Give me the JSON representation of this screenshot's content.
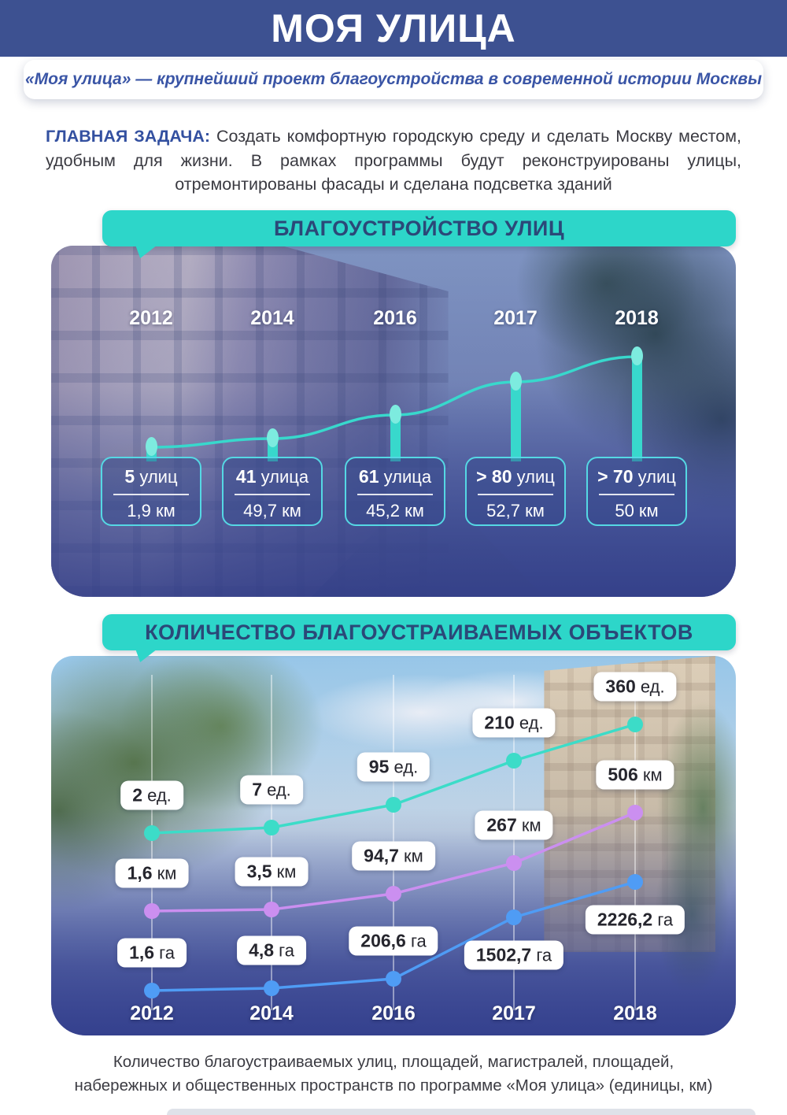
{
  "header": {
    "title": "МОЯ УЛИЦА"
  },
  "subtitle_banner": {
    "text": "«Моя улица» — крупнейший проект благоустройства в современной истории Москвы"
  },
  "task": {
    "label": "ГЛАВНАЯ ЗАДАЧА:",
    "text": "Создать комфортную городскую среду и сделать Москву местом, удобным для жизни. В рамках программы будут реконструированы улицы, отремонтированы фасады и сделана подсветка зданий"
  },
  "section_streets": {
    "banner": "БЛАГОУСТРОЙСТВО УЛИЦ"
  },
  "section_objects": {
    "banner": "КОЛИЧЕСТВО БЛАГОУСТРАИВАЕМЫХ ОБЪЕКТОВ"
  },
  "footer": {
    "line1": "Количество благоустраиваемых улиц, площадей, магистралей, площадей,",
    "line2": "набережных и общественных пространств по программе «Моя улица» (единицы, км)"
  },
  "colors": {
    "header_bg": "#3d5191",
    "banner_bg": "#2dd6c9",
    "banner_text": "#2b4878",
    "subtitle_text": "#3a55a6",
    "task_label_text": "#3350a0",
    "bar_teal": "#38d8cc",
    "box_border": "#55d8e4",
    "line_units": "#3cdcc8",
    "line_km": "#cb8ff0",
    "line_ga": "#4f9cf5"
  },
  "chart_data": [
    {
      "type": "bar",
      "title": "БЛАГОУСТРОЙСТВО УЛИЦ",
      "categories": [
        "2012",
        "2014",
        "2016",
        "2017",
        "2018"
      ],
      "series": [
        {
          "name": "количество улиц",
          "values": [
            5,
            41,
            61,
            80,
            70
          ],
          "labels": [
            "5 улиц",
            "41 улица",
            "61 улица",
            "> 80 улиц",
            "> 70 улиц"
          ]
        },
        {
          "name": "протяжённость, км",
          "values": [
            1.9,
            49.7,
            45.2,
            52.7,
            50
          ],
          "labels": [
            "1,9 км",
            "49,7 км",
            "45,2 км",
            "52,7 км",
            "50 км"
          ]
        }
      ],
      "legend": false,
      "grid": false
    },
    {
      "type": "line",
      "title": "КОЛИЧЕСТВО БЛАГОУСТРАИВАЕМЫХ ОБЪЕКТОВ",
      "categories": [
        "2012",
        "2014",
        "2016",
        "2017",
        "2018"
      ],
      "series": [
        {
          "name": "единицы",
          "color": "#3cdcc8",
          "values": [
            2,
            7,
            95,
            210,
            360
          ],
          "labels": [
            "2 ед.",
            "7 ед.",
            "95 ед.",
            "210 ед.",
            "360 ед."
          ]
        },
        {
          "name": "км",
          "color": "#cb8ff0",
          "values": [
            1.6,
            3.5,
            94.7,
            267,
            506
          ],
          "labels": [
            "1,6 км",
            "3,5 км",
            "94,7 км",
            "267 км",
            "506 км"
          ]
        },
        {
          "name": "га",
          "color": "#4f9cf5",
          "values": [
            1.6,
            4.8,
            206.6,
            1502.7,
            2226.2
          ],
          "labels": [
            "1,6 га",
            "4,8 га",
            "206,6 га",
            "1502,7 га",
            "2226,2 га"
          ]
        }
      ],
      "legend": false,
      "grid": "vertical-white"
    }
  ]
}
